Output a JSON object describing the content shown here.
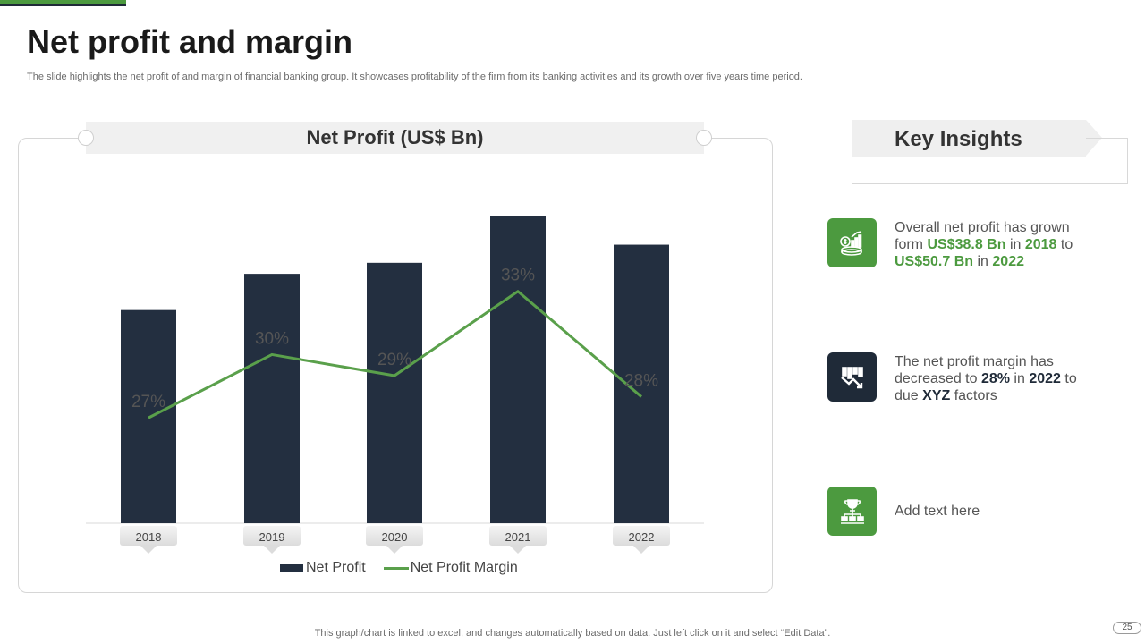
{
  "slide": {
    "title": "Net profit and margin",
    "subtitle": "The slide highlights the net profit of and margin of financial banking group. It showcases profitability of the firm from its banking activities and its growth over five years time period.",
    "footer": "This graph/chart is linked to excel,  and changes automatically based on data. Just left click on it and select “Edit Data”.",
    "page_number": "25"
  },
  "colors": {
    "bar": "#232f40",
    "line": "#5aa04b",
    "accent_green": "#4c9a3f",
    "accent_dark": "#1f2a38"
  },
  "chart_data": {
    "type": "bar",
    "title": "Net Profit (US$ Bn)",
    "categories": [
      "2018",
      "2019",
      "2020",
      "2021",
      "2022"
    ],
    "series": [
      {
        "name": "Net Profit",
        "type": "bar",
        "values": [
          38.8,
          45.4,
          47.4,
          56.0,
          50.7
        ]
      },
      {
        "name": "Net Profit Margin",
        "type": "line",
        "values": [
          27,
          30,
          29,
          33,
          28
        ],
        "labels": [
          "27%",
          "30%",
          "29%",
          "33%",
          "28%"
        ]
      }
    ],
    "ylim": [
      0,
      56
    ],
    "margin_ylim": [
      22,
      43
    ],
    "grid": false,
    "legend": "bottom-center"
  },
  "insights": {
    "title": "Key Insights",
    "items": [
      {
        "icon": "money-growth-icon",
        "parts": [
          {
            "text": "Overall net profit has grown form ",
            "style": ""
          },
          {
            "text": "US$38.8 Bn",
            "style": "green"
          },
          {
            "text": " in ",
            "style": ""
          },
          {
            "text": "2018",
            "style": "green"
          },
          {
            "text": " to ",
            "style": ""
          },
          {
            "text": "US$50.7 Bn",
            "style": "green"
          },
          {
            "text": " in ",
            "style": ""
          },
          {
            "text": "2022",
            "style": "green"
          }
        ]
      },
      {
        "icon": "declining-chart-icon",
        "parts": [
          {
            "text": "The net profit margin has decreased to ",
            "style": ""
          },
          {
            "text": "28%",
            "style": "dark"
          },
          {
            "text": " in ",
            "style": ""
          },
          {
            "text": "2022",
            "style": "dark"
          },
          {
            "text": " to due ",
            "style": ""
          },
          {
            "text": "XYZ",
            "style": "dark"
          },
          {
            "text": " factors",
            "style": ""
          }
        ]
      },
      {
        "icon": "trophy-hierarchy-icon",
        "parts": [
          {
            "text": "Add text here",
            "style": ""
          }
        ]
      }
    ]
  }
}
